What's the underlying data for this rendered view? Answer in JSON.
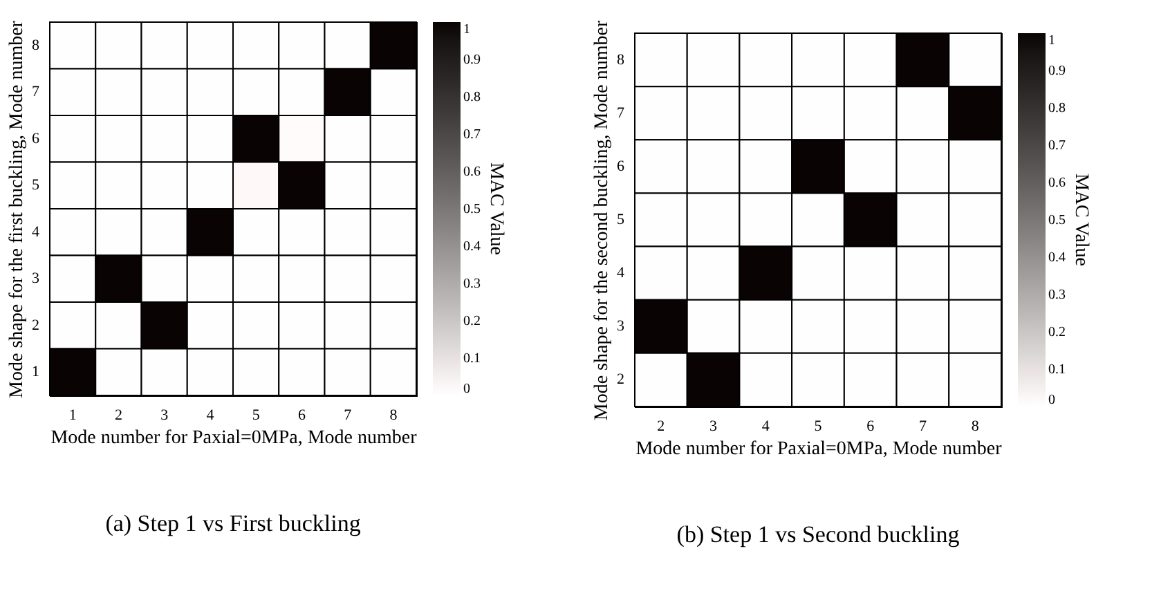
{
  "chart_data": [
    {
      "type": "heatmap",
      "title": "(a)  Step 1 vs First buckling",
      "xlabel": "Mode number for Paxial=0MPa, Mode number",
      "ylabel": "Mode shape for the first buckling, Mode number",
      "clabel": "MAC Value",
      "categories": [
        "1",
        "2",
        "3",
        "4",
        "5",
        "6",
        "7",
        "8"
      ],
      "y_categories": [
        "8",
        "7",
        "6",
        "5",
        "4",
        "3",
        "2",
        "1"
      ],
      "cells": [
        [
          0,
          0,
          0,
          0,
          0,
          0,
          0,
          1
        ],
        [
          0,
          0,
          0,
          0,
          0,
          0,
          1,
          0
        ],
        [
          0,
          0,
          0,
          0,
          1,
          0.01,
          0,
          0
        ],
        [
          0,
          0,
          0,
          0,
          0.02,
          1,
          0,
          0
        ],
        [
          0,
          0,
          0,
          1,
          0,
          0,
          0,
          0
        ],
        [
          0,
          1,
          0,
          0,
          0,
          0,
          0,
          0
        ],
        [
          0,
          0,
          1,
          0,
          0,
          0,
          0,
          0
        ],
        [
          1,
          0,
          0,
          0,
          0,
          0,
          0,
          0
        ]
      ],
      "clim": [
        0,
        1
      ],
      "cticks": [
        0,
        0.1,
        0.2,
        0.3,
        0.4,
        0.5,
        0.6,
        0.7,
        0.8,
        0.9,
        1
      ]
    },
    {
      "type": "heatmap",
      "title": "(b)  Step 1 vs Second buckling",
      "xlabel": "Mode number for Paxial=0MPa, Mode number",
      "ylabel": "Mode shape for the second buckling, Mode number",
      "clabel": "MAC Value",
      "categories": [
        "2",
        "3",
        "4",
        "5",
        "6",
        "7",
        "8"
      ],
      "y_categories": [
        "8",
        "7",
        "6",
        "5",
        "4",
        "3",
        "2"
      ],
      "cells": [
        [
          0,
          0,
          0,
          0,
          0,
          1,
          0
        ],
        [
          0,
          0,
          0,
          0,
          0,
          0,
          1
        ],
        [
          0,
          0,
          0,
          1,
          0,
          0,
          0
        ],
        [
          0,
          0,
          0,
          0,
          1,
          0,
          0
        ],
        [
          0,
          0,
          1,
          0,
          0,
          0,
          0
        ],
        [
          1,
          0,
          0,
          0,
          0,
          0,
          0
        ],
        [
          0,
          1,
          0,
          0,
          0,
          0,
          0
        ]
      ],
      "clim": [
        0,
        1
      ],
      "cticks": [
        0,
        0.1,
        0.2,
        0.3,
        0.4,
        0.5,
        0.6,
        0.7,
        0.8,
        0.9,
        1
      ]
    }
  ]
}
